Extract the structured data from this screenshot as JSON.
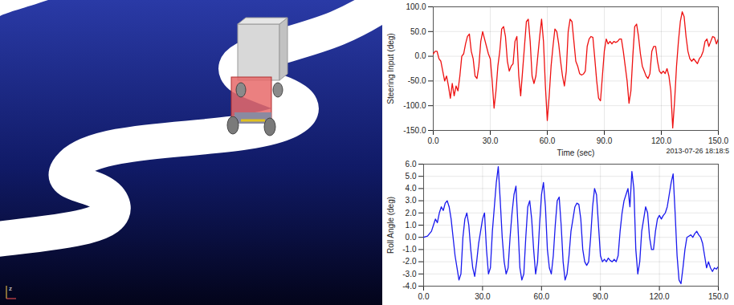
{
  "scene": {
    "axis_label": "z"
  },
  "chart_data": [
    {
      "type": "line",
      "y_label": "Steering Input (deg)",
      "x_label": "Time (sec)",
      "annotation": "2013-07-26 18:18:5",
      "color": "#ee1111",
      "grid": true,
      "xlim": [
        0,
        150
      ],
      "xticks": [
        {
          "value": 0,
          "label": "0.0"
        },
        {
          "value": 30,
          "label": "30.0"
        },
        {
          "value": 60,
          "label": "60.0"
        },
        {
          "value": 90,
          "label": "90.0"
        },
        {
          "value": 120,
          "label": "120.0"
        },
        {
          "value": 150,
          "label": "150.0"
        }
      ],
      "ylim": [
        -150,
        100
      ],
      "yticks": [
        {
          "value": -150,
          "label": "-150.0"
        },
        {
          "value": -100,
          "label": "-100.0"
        },
        {
          "value": -50,
          "label": "-50.0"
        },
        {
          "value": 0,
          "label": "0.0"
        },
        {
          "value": 50,
          "label": "50.0"
        },
        {
          "value": 100,
          "label": "100.0"
        }
      ],
      "x": [
        0,
        1,
        2,
        3,
        4,
        5,
        6,
        7,
        8,
        9,
        10,
        11,
        12,
        13,
        14,
        15,
        16,
        17,
        18,
        19,
        20,
        21,
        22,
        23,
        24,
        25,
        26,
        27,
        28,
        29,
        30,
        31,
        32,
        33,
        34,
        35,
        36,
        37,
        38,
        39,
        40,
        41,
        42,
        43,
        44,
        45,
        46,
        47,
        48,
        49,
        50,
        51,
        52,
        53,
        54,
        55,
        56,
        57,
        58,
        59,
        60,
        61,
        62,
        63,
        64,
        65,
        66,
        67,
        68,
        69,
        70,
        71,
        72,
        73,
        74,
        75,
        76,
        77,
        78,
        79,
        80,
        81,
        82,
        83,
        84,
        85,
        86,
        87,
        88,
        89,
        90,
        91,
        92,
        93,
        94,
        95,
        96,
        97,
        98,
        99,
        100,
        101,
        102,
        103,
        104,
        105,
        106,
        107,
        108,
        109,
        110,
        111,
        112,
        113,
        114,
        115,
        116,
        117,
        118,
        119,
        120,
        121,
        122,
        123,
        124,
        125,
        126,
        127,
        128,
        129,
        130,
        131,
        132,
        133,
        134,
        135,
        136,
        137,
        138,
        139,
        140,
        141,
        142,
        143,
        144,
        145,
        146,
        147,
        148,
        149,
        150
      ],
      "values": [
        5,
        10,
        10,
        -5,
        -10,
        -30,
        -50,
        -40,
        -60,
        -85,
        -55,
        -80,
        -60,
        -70,
        -40,
        0,
        5,
        25,
        40,
        45,
        10,
        -5,
        -40,
        -45,
        -20,
        30,
        50,
        35,
        20,
        5,
        -5,
        -50,
        -105,
        -70,
        -20,
        10,
        55,
        60,
        40,
        -10,
        -30,
        -20,
        -15,
        30,
        40,
        -40,
        -80,
        -30,
        20,
        70,
        75,
        30,
        -40,
        -55,
        -40,
        0,
        40,
        75,
        30,
        -60,
        -130,
        -80,
        -20,
        20,
        55,
        50,
        25,
        -10,
        -40,
        -60,
        -30,
        50,
        75,
        70,
        30,
        -10,
        -20,
        -35,
        -38,
        -36,
        -30,
        20,
        35,
        40,
        38,
        -5,
        -50,
        -85,
        -90,
        -40,
        10,
        35,
        25,
        30,
        25,
        30,
        28,
        30,
        35,
        35,
        10,
        -20,
        -50,
        -95,
        -70,
        0,
        60,
        65,
        40,
        5,
        -20,
        -30,
        -40,
        -45,
        -35,
        10,
        20,
        20,
        -10,
        -30,
        -35,
        -30,
        -35,
        -25,
        -40,
        -70,
        -145,
        -90,
        -20,
        30,
        70,
        90,
        80,
        40,
        10,
        -5,
        -10,
        -5,
        -10,
        -15,
        -5,
        0,
        10,
        30,
        35,
        20,
        30,
        40,
        38,
        25,
        35
      ]
    },
    {
      "type": "line",
      "y_label": "Roll Angle (deg)",
      "color": "#1a1aee",
      "grid": true,
      "xlim": [
        0,
        150
      ],
      "xticks": [
        {
          "value": 0,
          "label": "0.0"
        },
        {
          "value": 30,
          "label": "30.0"
        },
        {
          "value": 60,
          "label": "60.0"
        },
        {
          "value": 90,
          "label": "90.0"
        },
        {
          "value": 120,
          "label": "120.0"
        },
        {
          "value": 150,
          "label": "150.0"
        }
      ],
      "ylim": [
        -4,
        6
      ],
      "yticks": [
        {
          "value": -4,
          "label": "-4.0"
        },
        {
          "value": -3,
          "label": "-3.0"
        },
        {
          "value": -2,
          "label": "-2.0"
        },
        {
          "value": -1,
          "label": "-1.0"
        },
        {
          "value": 0,
          "label": "0.0"
        },
        {
          "value": 1,
          "label": "1.0"
        },
        {
          "value": 2,
          "label": "2.0"
        },
        {
          "value": 3,
          "label": "3.0"
        },
        {
          "value": 4,
          "label": "4.0"
        },
        {
          "value": 5,
          "label": "5.0"
        },
        {
          "value": 6,
          "label": "6.0"
        }
      ],
      "x": [
        0,
        1,
        2,
        3,
        4,
        5,
        6,
        7,
        8,
        9,
        10,
        11,
        12,
        13,
        14,
        15,
        16,
        17,
        18,
        19,
        20,
        21,
        22,
        23,
        24,
        25,
        26,
        27,
        28,
        29,
        30,
        31,
        32,
        33,
        34,
        35,
        36,
        37,
        38,
        39,
        40,
        41,
        42,
        43,
        44,
        45,
        46,
        47,
        48,
        49,
        50,
        51,
        52,
        53,
        54,
        55,
        56,
        57,
        58,
        59,
        60,
        61,
        62,
        63,
        64,
        65,
        66,
        67,
        68,
        69,
        70,
        71,
        72,
        73,
        74,
        75,
        76,
        77,
        78,
        79,
        80,
        81,
        82,
        83,
        84,
        85,
        86,
        87,
        88,
        89,
        90,
        91,
        92,
        93,
        94,
        95,
        96,
        97,
        98,
        99,
        100,
        101,
        102,
        103,
        104,
        105,
        106,
        107,
        108,
        109,
        110,
        111,
        112,
        113,
        114,
        115,
        116,
        117,
        118,
        119,
        120,
        121,
        122,
        123,
        124,
        125,
        126,
        127,
        128,
        129,
        130,
        131,
        132,
        133,
        134,
        135,
        136,
        137,
        138,
        139,
        140,
        141,
        142,
        143,
        144,
        145,
        146,
        147,
        148,
        149,
        150
      ],
      "values": [
        0,
        0.05,
        0.1,
        0.3,
        0.5,
        1.0,
        1.5,
        1.2,
        2.0,
        2.5,
        2.2,
        2.8,
        3.0,
        2.5,
        1.5,
        0,
        -1.5,
        -2.5,
        -3.5,
        -3.0,
        0,
        1.5,
        2.0,
        1.0,
        -1.0,
        -2.5,
        -3.2,
        -2.0,
        -0.5,
        0.5,
        1.5,
        2.0,
        -1.0,
        -3.0,
        -2.5,
        0.5,
        2.5,
        4.5,
        5.8,
        3.0,
        0,
        -2.0,
        -3.0,
        -2.5,
        0,
        2.0,
        3.5,
        4.2,
        1.0,
        -2.5,
        -3.5,
        -3.0,
        0,
        2.5,
        3.0,
        1.5,
        -1.0,
        -3.0,
        -2.0,
        1.0,
        3.5,
        4.5,
        2.5,
        -1.0,
        -2.5,
        -3.0,
        -1.5,
        1.0,
        3.0,
        3.3,
        1.0,
        -2.0,
        -3.5,
        -3.0,
        -1.5,
        0.5,
        1.5,
        2.5,
        2.8,
        2.7,
        1.5,
        -1.0,
        -2.0,
        -2.3,
        -2.0,
        0,
        2.5,
        4.0,
        3.5,
        1.0,
        -1.5,
        -2.0,
        -1.8,
        -2.0,
        -1.7,
        -1.9,
        -2.0,
        -1.8,
        -2.0,
        -1.5,
        0.5,
        2.0,
        3.0,
        3.5,
        4.0,
        2.5,
        5.4,
        4.0,
        -1.0,
        -3.0,
        -2.0,
        0.5,
        1.5,
        2.5,
        2.0,
        0,
        -1.0,
        -1.0,
        0.5,
        1.5,
        1.8,
        1.5,
        1.8,
        2.0,
        2.5,
        3.5,
        4.5,
        5.2,
        2.0,
        -1.5,
        -3.5,
        -3.8,
        -2.5,
        -1.0,
        0,
        0.1,
        0.2,
        0,
        0.3,
        0.5,
        0.2,
        0,
        -0.5,
        -1.5,
        -2.5,
        -2.0,
        -2.5,
        -2.8,
        -2.5,
        -2.6,
        -2.4
      ]
    }
  ]
}
